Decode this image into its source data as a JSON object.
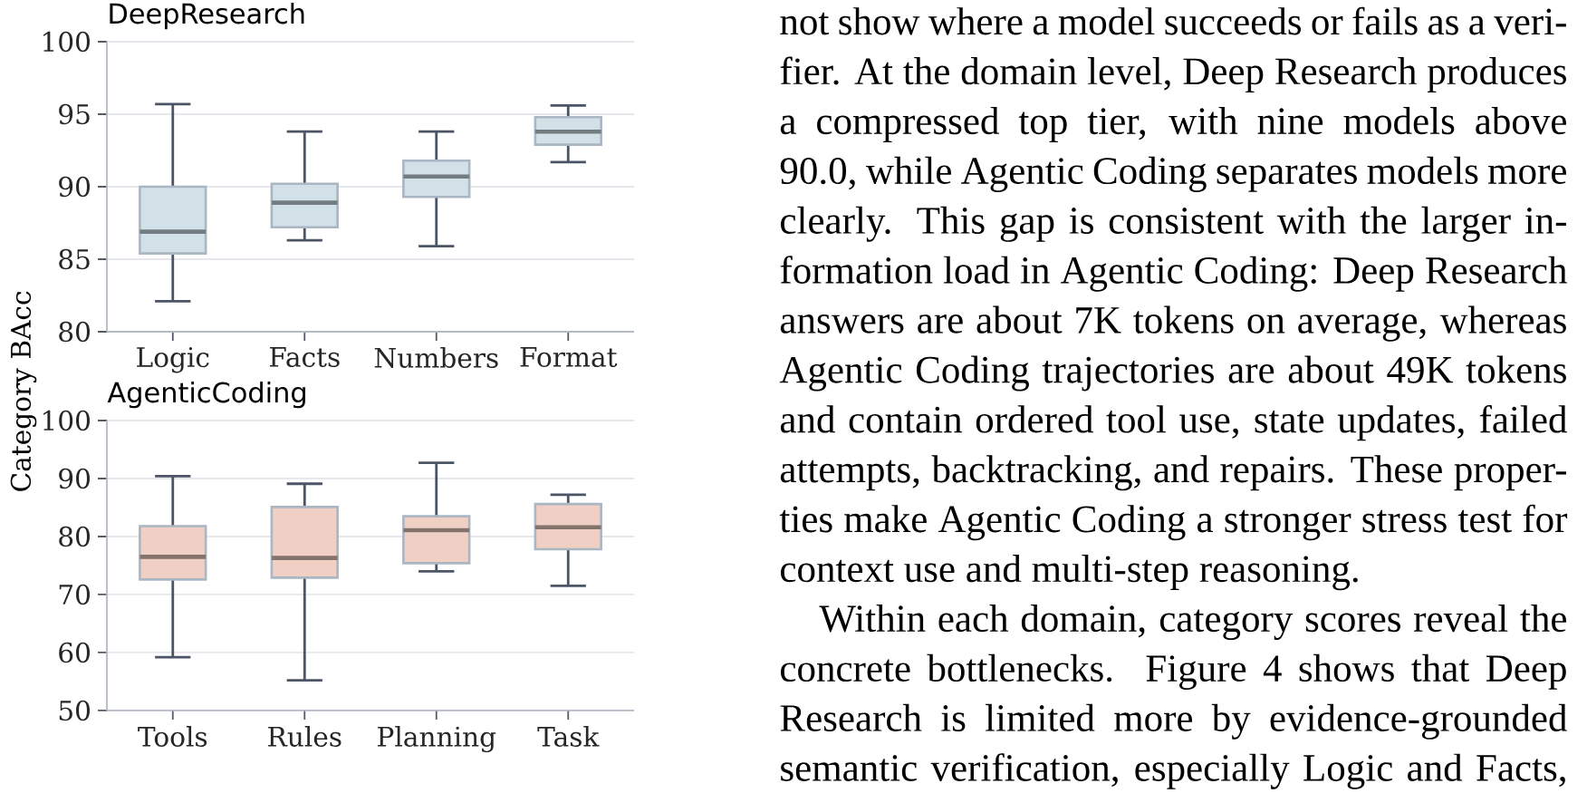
{
  "chart_data": [
    {
      "type": "box",
      "title": "DeepResearch",
      "ylabel": "Category BAcc",
      "categories": [
        "Logic",
        "Facts",
        "Numbers",
        "Format"
      ],
      "series": [
        {
          "color": "#d2e1e8",
          "boxes": [
            {
              "low": 82.1,
              "q1": 85.4,
              "median": 86.9,
              "q3": 90.0,
              "high": 95.7
            },
            {
              "low": 86.3,
              "q1": 87.2,
              "median": 88.9,
              "q3": 90.2,
              "high": 93.8
            },
            {
              "low": 85.9,
              "q1": 89.3,
              "median": 90.7,
              "q3": 91.8,
              "high": 93.8
            },
            {
              "low": 91.7,
              "q1": 92.9,
              "median": 93.8,
              "q3": 94.8,
              "high": 95.6
            }
          ]
        }
      ],
      "ylim": [
        80,
        100
      ],
      "yticks": [
        80,
        85,
        90,
        95,
        100
      ],
      "grid": "y"
    },
    {
      "type": "box",
      "title": "AgenticCoding",
      "categories": [
        "Tools",
        "Rules",
        "Planning",
        "Task"
      ],
      "series": [
        {
          "color": "#f0d0c4",
          "boxes": [
            {
              "low": 59.2,
              "q1": 72.6,
              "median": 76.5,
              "q3": 81.8,
              "high": 90.4
            },
            {
              "low": 55.2,
              "q1": 72.9,
              "median": 76.3,
              "q3": 85.1,
              "high": 89.1
            },
            {
              "low": 74.0,
              "q1": 75.4,
              "median": 81.1,
              "q3": 83.5,
              "high": 92.7
            },
            {
              "low": 71.5,
              "q1": 77.8,
              "median": 81.6,
              "q3": 85.6,
              "high": 87.2
            }
          ]
        }
      ],
      "ylim": [
        50,
        100
      ],
      "yticks": [
        50,
        60,
        70,
        80,
        90,
        100
      ],
      "grid": "y"
    },
    {
      "type": "other",
      "annotations": [
        "not show where a model succeeds or fails as a veri-",
        "fier. At the domain level, Deep Research produces",
        "a compressed top tier, with nine models above",
        "90.0, while Agentic Coding separates models more",
        "clearly. This gap is consistent with the larger in-",
        "formation load in Agentic Coding: Deep Research",
        "answers are about 7K tokens on average, whereas",
        "Agentic Coding trajectories are about 49K tokens",
        "and contain ordered tool use, state updates, failed",
        "attempts, backtracking, and repairs. These proper-",
        "ties make Agentic Coding a stronger stress test for",
        "context use and multi-step reasoning.",
        "Within each domain, category scores reveal the",
        "concrete bottlenecks. Figure 4 shows that Deep",
        "Research is limited more by evidence-grounded",
        "semantic verification, especially Logic and Facts,"
      ]
    }
  ]
}
